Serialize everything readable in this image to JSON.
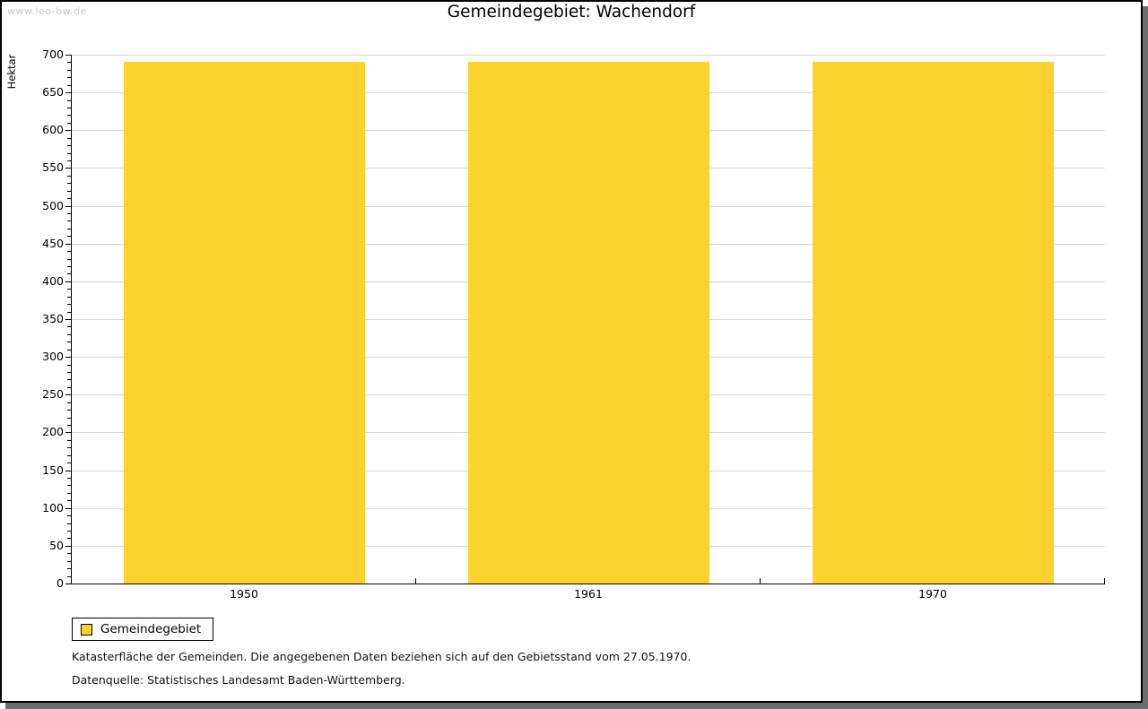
{
  "watermark": "www.leo-bw.de",
  "header": {
    "title": "Gemeindegebiet: Wachendorf"
  },
  "chart_data": {
    "type": "bar",
    "title": "Gemeindegebiet: Wachendorf",
    "categories": [
      "1950",
      "1961",
      "1970"
    ],
    "series": [
      {
        "name": "Gemeindegebiet",
        "color": "#fcd32e",
        "values": [
          690,
          690,
          690
        ]
      }
    ],
    "xlabel": "",
    "ylabel": "Hektar",
    "ylim": [
      0,
      700
    ],
    "y_major_step": 50,
    "y_minor_step": 10,
    "grid": "horizontal major gridlines only",
    "legend_position": "bottom-left outside plot"
  },
  "legend": {
    "items": [
      {
        "label": "Gemeindegebiet",
        "color": "#fcd32e"
      }
    ]
  },
  "footnotes": {
    "line1": "Katasterfläche der Gemeinden. Die angegebenen Daten beziehen sich auf den Gebietsstand vom 27.05.1970.",
    "line2": "Datenquelle: Statistisches Landesamt Baden-Württemberg."
  },
  "colors": {
    "bar": "#fcd32e",
    "gridline": "#d8d8d8",
    "axis": "#000000",
    "watermark": "#c9c9c9",
    "page_shadow": "#6e6e6e",
    "background": "#ffffff"
  }
}
